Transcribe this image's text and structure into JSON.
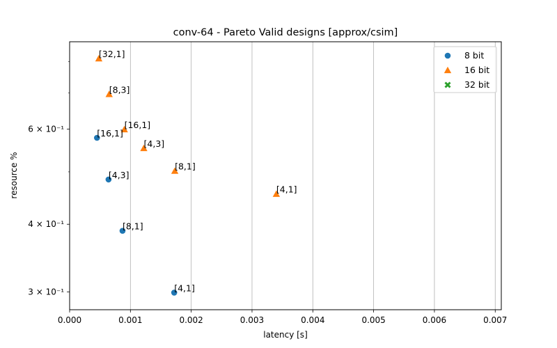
{
  "chart_data": {
    "type": "scatter",
    "title": "conv-64 - Pareto Valid designs [approx/csim]",
    "xlabel": "latency [s]",
    "ylabel": "resource %",
    "xlim": [
      0.0,
      0.0071
    ],
    "ylim": [
      0.278,
      0.87
    ],
    "yscale": "log",
    "grid": "x-major",
    "legend_position": "top-right",
    "x_ticks": [
      {
        "value": 0.0,
        "label": "0.000"
      },
      {
        "value": 0.001,
        "label": "0.001"
      },
      {
        "value": 0.002,
        "label": "0.002"
      },
      {
        "value": 0.003,
        "label": "0.003"
      },
      {
        "value": 0.004,
        "label": "0.004"
      },
      {
        "value": 0.005,
        "label": "0.005"
      },
      {
        "value": 0.006,
        "label": "0.006"
      },
      {
        "value": 0.007,
        "label": "0.007"
      }
    ],
    "y_ticks": [
      {
        "value": 0.3,
        "label": "3 × 10⁻¹"
      },
      {
        "value": 0.4,
        "label": "4 × 10⁻¹"
      },
      {
        "value": 0.6,
        "label": "6 × 10⁻¹"
      }
    ],
    "y_minor_ticks": [
      0.5,
      0.7,
      0.8
    ],
    "series": [
      {
        "name": "8 bit",
        "marker": "circle",
        "color": "#1f77b4",
        "points": [
          {
            "x": 0.00045,
            "y": 0.578,
            "label": "[16,1]"
          },
          {
            "x": 0.00064,
            "y": 0.484,
            "label": "[4,3]"
          },
          {
            "x": 0.00087,
            "y": 0.389,
            "label": "[8,1]"
          },
          {
            "x": 0.00172,
            "y": 0.299,
            "label": "[4,1]"
          }
        ]
      },
      {
        "name": "16 bit",
        "marker": "triangle",
        "color": "#ff7f0e",
        "points": [
          {
            "x": 0.00048,
            "y": 0.81,
            "label": "[32,1]"
          },
          {
            "x": 0.00065,
            "y": 0.696,
            "label": "[8,3]"
          },
          {
            "x": 0.0009,
            "y": 0.599,
            "label": "[16,1]"
          },
          {
            "x": 0.00122,
            "y": 0.553,
            "label": "[4,3]"
          },
          {
            "x": 0.00173,
            "y": 0.502,
            "label": "[8,1]"
          },
          {
            "x": 0.0034,
            "y": 0.455,
            "label": "[4,1]"
          }
        ]
      },
      {
        "name": "32 bit",
        "marker": "x",
        "color": "#2ca02c",
        "points": []
      }
    ]
  }
}
